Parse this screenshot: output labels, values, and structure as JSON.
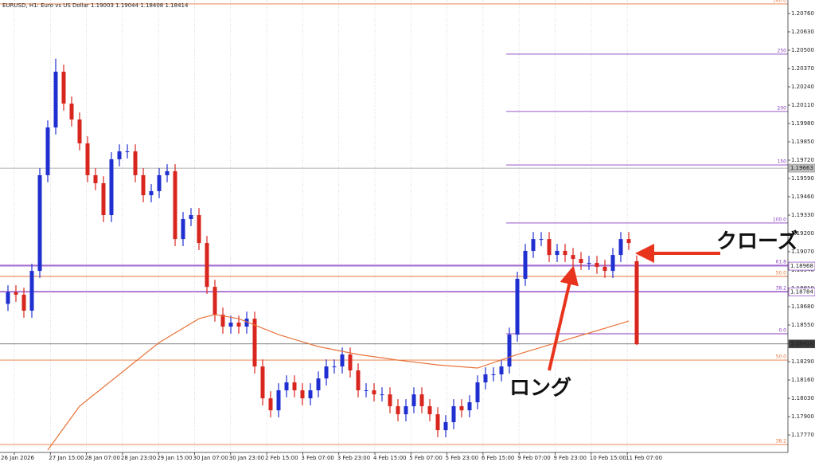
{
  "chart_data": {
    "type": "candlestick",
    "title": "EURUSD, H1:  Euro vs US Dollar  1.19003 1.19044 1.18408 1.18414",
    "up_color": "#1f2fd0",
    "down_color": "#d8261e",
    "ylim": [
      1.17646,
      1.20839
    ],
    "yticks": [
      {
        "value": 1.2076,
        "label": "1.20760"
      },
      {
        "value": 1.2063,
        "label": "1.20630"
      },
      {
        "value": 1.205,
        "label": "1.20500"
      },
      {
        "value": 1.2037,
        "label": "1.20370"
      },
      {
        "value": 1.2024,
        "label": "1.20240"
      },
      {
        "value": 1.2011,
        "label": "1.20110"
      },
      {
        "value": 1.1998,
        "label": "1.19980"
      },
      {
        "value": 1.1985,
        "label": "1.19850"
      },
      {
        "value": 1.1972,
        "label": "1.19720"
      },
      {
        "value": 1.1959,
        "label": "1.19590"
      },
      {
        "value": 1.1946,
        "label": "1.19460"
      },
      {
        "value": 1.1933,
        "label": "1.19330"
      },
      {
        "value": 1.192,
        "label": "1.19200"
      },
      {
        "value": 1.1907,
        "label": "1.19070"
      },
      {
        "value": 1.1894,
        "label": "1.18940"
      },
      {
        "value": 1.1881,
        "label": "1.18810"
      },
      {
        "value": 1.1868,
        "label": "1.18680"
      },
      {
        "value": 1.1855,
        "label": "1.18550"
      },
      {
        "value": 1.1842,
        "label": "1.18420"
      },
      {
        "value": 1.1829,
        "label": "1.18290"
      },
      {
        "value": 1.1816,
        "label": "1.18160"
      },
      {
        "value": 1.1803,
        "label": "1.18030"
      },
      {
        "value": 1.179,
        "label": "1.17900"
      },
      {
        "value": 1.1777,
        "label": "1.17770"
      }
    ],
    "x_labels": [
      "26 Jan 2026",
      "27 Jan 15:00",
      "28 Jan 07:00",
      "28 Jan 23:00",
      "29 Jan 15:00",
      "30 Jan 07:00",
      "30 Jan 23:00",
      "2 Feb 15:00",
      "3 Feb 07:00",
      "3 Feb 23:00",
      "4 Feb 15:00",
      "5 Feb 07:00",
      "5 Feb 23:00",
      "6 Feb 15:00",
      "9 Feb 07:00",
      "9 Feb 23:00",
      "10 Feb 15:00",
      "11 Feb 07:00"
    ],
    "grid": true,
    "ohlc": [
      [
        1.187,
        1.18832,
        1.1865,
        1.18782
      ],
      [
        1.18782,
        1.18832,
        1.18715,
        1.18765
      ],
      [
        1.18765,
        1.18815,
        1.18602,
        1.18652
      ],
      [
        1.18652,
        1.18984,
        1.18602,
        1.18934
      ],
      [
        1.18934,
        1.19663,
        1.18884,
        1.19613
      ],
      [
        1.19613,
        1.20002,
        1.19563,
        1.19952
      ],
      [
        1.19952,
        1.2044,
        1.19902,
        1.20347
      ],
      [
        1.20347,
        1.20397,
        1.20071,
        1.20121
      ],
      [
        1.20121,
        1.20171,
        1.19958,
        1.20008
      ],
      [
        1.20008,
        1.20058,
        1.19789,
        1.19839
      ],
      [
        1.19839,
        1.19889,
        1.19563,
        1.19613
      ],
      [
        1.19613,
        1.19663,
        1.19506,
        1.19556
      ],
      [
        1.19556,
        1.19606,
        1.1928,
        1.1933
      ],
      [
        1.1933,
        1.19776,
        1.1928,
        1.19726
      ],
      [
        1.19726,
        1.19832,
        1.19676,
        1.19782
      ],
      [
        1.19782,
        1.19832,
        1.19732,
        1.19782
      ],
      [
        1.19782,
        1.19832,
        1.19563,
        1.19613
      ],
      [
        1.19613,
        1.19663,
        1.19421,
        1.19471
      ],
      [
        1.19471,
        1.1955,
        1.19421,
        1.195
      ],
      [
        1.195,
        1.19663,
        1.1945,
        1.19613
      ],
      [
        1.19613,
        1.19691,
        1.19563,
        1.19641
      ],
      [
        1.19641,
        1.19691,
        1.1911,
        1.1916
      ],
      [
        1.1916,
        1.19352,
        1.1911,
        1.19302
      ],
      [
        1.19302,
        1.1938,
        1.19252,
        1.1933
      ],
      [
        1.1933,
        1.1938,
        1.19082,
        1.19132
      ],
      [
        1.19132,
        1.19182,
        1.18771,
        1.18821
      ],
      [
        1.18821,
        1.18871,
        1.18574,
        1.18624
      ],
      [
        1.18624,
        1.18674,
        1.18489,
        1.18539
      ],
      [
        1.18539,
        1.18617,
        1.18489,
        1.18567
      ],
      [
        1.18567,
        1.18617,
        1.18489,
        1.18539
      ],
      [
        1.18539,
        1.18645,
        1.18489,
        1.18595
      ],
      [
        1.18595,
        1.18645,
        1.18206,
        1.18256
      ],
      [
        1.18256,
        1.18306,
        1.1798,
        1.1803
      ],
      [
        1.1803,
        1.1808,
        1.17895,
        1.17945
      ],
      [
        1.17945,
        1.18137,
        1.17895,
        1.18087
      ],
      [
        1.18087,
        1.18193,
        1.18037,
        1.18143
      ],
      [
        1.18143,
        1.18193,
        1.18037,
        1.18087
      ],
      [
        1.18087,
        1.18137,
        1.1798,
        1.1803
      ],
      [
        1.1803,
        1.18137,
        1.1798,
        1.18087
      ],
      [
        1.18087,
        1.18221,
        1.18037,
        1.18171
      ],
      [
        1.18171,
        1.18306,
        1.18121,
        1.18256
      ],
      [
        1.18256,
        1.18306,
        1.18206,
        1.18256
      ],
      [
        1.18256,
        1.18391,
        1.18206,
        1.18341
      ],
      [
        1.18341,
        1.18391,
        1.18178,
        1.18228
      ],
      [
        1.18228,
        1.18278,
        1.18037,
        1.18087
      ],
      [
        1.18087,
        1.18137,
        1.18037,
        1.18087
      ],
      [
        1.18087,
        1.18137,
        1.18008,
        1.18058
      ],
      [
        1.18058,
        1.18108,
        1.18008,
        1.18058
      ],
      [
        1.18058,
        1.18108,
        1.17924,
        1.17974
      ],
      [
        1.17974,
        1.18024,
        1.17867,
        1.17917
      ],
      [
        1.17917,
        1.18024,
        1.17867,
        1.17974
      ],
      [
        1.17974,
        1.18108,
        1.17924,
        1.18058
      ],
      [
        1.18058,
        1.18108,
        1.17924,
        1.17974
      ],
      [
        1.17974,
        1.18024,
        1.17867,
        1.17917
      ],
      [
        1.17917,
        1.17967,
        1.17754,
        1.17804
      ],
      [
        1.17804,
        1.17911,
        1.17754,
        1.17861
      ],
      [
        1.17861,
        1.18024,
        1.17811,
        1.17974
      ],
      [
        1.17974,
        1.18024,
        1.17895,
        1.17945
      ],
      [
        1.17945,
        1.18052,
        1.17895,
        1.18002
      ],
      [
        1.18002,
        1.18193,
        1.17952,
        1.18143
      ],
      [
        1.18143,
        1.1825,
        1.18093,
        1.182
      ],
      [
        1.182,
        1.1825,
        1.1815,
        1.182
      ],
      [
        1.182,
        1.18306,
        1.1815,
        1.18256
      ],
      [
        1.18256,
        1.18532,
        1.18206,
        1.18482
      ],
      [
        1.18482,
        1.18928,
        1.18432,
        1.18878
      ],
      [
        1.18878,
        1.19126,
        1.18828,
        1.19076
      ],
      [
        1.19076,
        1.1921,
        1.19026,
        1.1916
      ],
      [
        1.1916,
        1.1921,
        1.1911,
        1.1916
      ],
      [
        1.1916,
        1.1921,
        1.18997,
        1.19047
      ],
      [
        1.19047,
        1.19126,
        1.18997,
        1.19076
      ],
      [
        1.19076,
        1.19126,
        1.18997,
        1.19047
      ],
      [
        1.19047,
        1.19097,
        1.18969,
        1.19019
      ],
      [
        1.19019,
        1.19069,
        1.18941,
        1.18991
      ],
      [
        1.18991,
        1.19041,
        1.18941,
        1.18991
      ],
      [
        1.18991,
        1.19041,
        1.18913,
        1.18963
      ],
      [
        1.18963,
        1.19013,
        1.18884,
        1.18934
      ],
      [
        1.18934,
        1.19097,
        1.18884,
        1.19047
      ],
      [
        1.19047,
        1.1921,
        1.18997,
        1.1916
      ],
      [
        1.1916,
        1.1921,
        1.19082,
        1.19132
      ],
      [
        1.19003,
        1.19044,
        1.18408,
        1.18414
      ]
    ],
    "ma": {
      "color": "#e8743b",
      "x": [
        5,
        9,
        14,
        19,
        24,
        26,
        29,
        34,
        39,
        44,
        49,
        54,
        59,
        64,
        69,
        74,
        78
      ],
      "values": [
        1.17663,
        1.17974,
        1.182,
        1.18426,
        1.18595,
        1.18624,
        1.18595,
        1.18482,
        1.18397,
        1.18341,
        1.18301,
        1.18267,
        1.18245,
        1.18341,
        1.18426,
        1.1851,
        1.18578
      ]
    },
    "levels": [
      {
        "value": 1.20828,
        "label": "300.0",
        "color": "#e8743b",
        "extent": "full"
      },
      {
        "value": 1.20472,
        "label": "250",
        "color": "#8a3fc0",
        "extent": "right"
      },
      {
        "value": 1.20065,
        "label": "200",
        "color": "#8a3fc0",
        "extent": "right"
      },
      {
        "value": 1.19686,
        "label": "150",
        "color": "#8a3fc0",
        "extent": "right"
      },
      {
        "value": 1.19274,
        "label": "100.0",
        "color": "#8a3fc0",
        "extent": "right"
      },
      {
        "value": 1.18974,
        "label": "61.8",
        "color": "#8a3fc0",
        "extent": "full"
      },
      {
        "value": 1.18895,
        "label": "50.0",
        "color": "#e8743b",
        "extent": "full"
      },
      {
        "value": 1.18787,
        "label": "38.2",
        "color": "#8a3fc0",
        "extent": "full"
      },
      {
        "value": 1.18488,
        "label": "0.0",
        "color": "#8a3fc0",
        "extent": "right"
      },
      {
        "value": 1.18301,
        "label": "50.0",
        "color": "#e8743b",
        "extent": "full"
      },
      {
        "value": 1.17702,
        "label": "38.2",
        "color": "#e8743b",
        "extent": "full"
      }
    ],
    "price_lines": [
      {
        "value": 1.19663,
        "color": "#9a9a9a"
      },
      {
        "value": 1.18968,
        "color": "#8a3fc0"
      },
      {
        "value": 1.18784,
        "color": "#8a3fc0"
      },
      {
        "value": 1.18416,
        "color": "#555555"
      }
    ],
    "annotations": [
      {
        "text": "クローズ"
      },
      {
        "text": "ロング"
      }
    ]
  }
}
